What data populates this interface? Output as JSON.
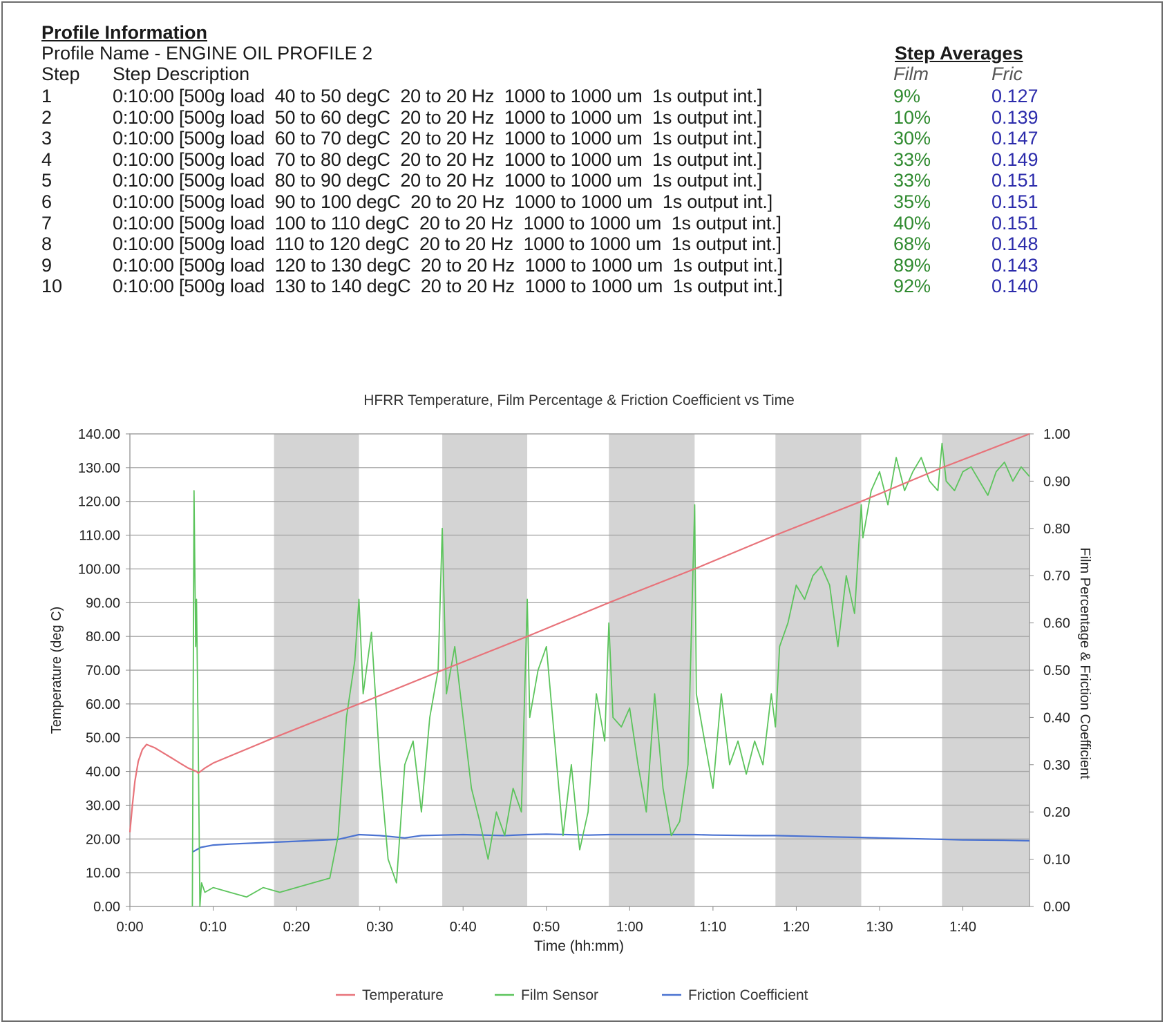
{
  "profile": {
    "heading": "Profile Information",
    "name_line": "Profile Name - ENGINE OIL PROFILE 2",
    "averages_heading": "Step Averages",
    "col_step": "Step",
    "col_desc": "Step Description",
    "col_film": "Film",
    "col_fric": "Fric",
    "rows": [
      {
        "step": "1",
        "desc": "0:10:00 [500g load  40 to 50 degC  20 to 20 Hz  1000 to 1000 um  1s output int.]",
        "film": "9%",
        "fric": "0.127"
      },
      {
        "step": "2",
        "desc": "0:10:00 [500g load  50 to 60 degC  20 to 20 Hz  1000 to 1000 um  1s output int.]",
        "film": "10%",
        "fric": "0.139"
      },
      {
        "step": "3",
        "desc": "0:10:00 [500g load  60 to 70 degC  20 to 20 Hz  1000 to 1000 um  1s output int.]",
        "film": "30%",
        "fric": "0.147"
      },
      {
        "step": "4",
        "desc": "0:10:00 [500g load  70 to 80 degC  20 to 20 Hz  1000 to 1000 um  1s output int.]",
        "film": "33%",
        "fric": "0.149"
      },
      {
        "step": "5",
        "desc": "0:10:00 [500g load  80 to 90 degC  20 to 20 Hz  1000 to 1000 um  1s output int.]",
        "film": "33%",
        "fric": "0.151"
      },
      {
        "step": "6",
        "desc": "0:10:00 [500g load  90 to 100 degC  20 to 20 Hz  1000 to 1000 um  1s output int.]",
        "film": "35%",
        "fric": "0.151"
      },
      {
        "step": "7",
        "desc": "0:10:00 [500g load  100 to 110 degC  20 to 20 Hz  1000 to 1000 um  1s output int.]",
        "film": "40%",
        "fric": "0.151"
      },
      {
        "step": "8",
        "desc": "0:10:00 [500g load  110 to 120 degC  20 to 20 Hz  1000 to 1000 um  1s output int.]",
        "film": "68%",
        "fric": "0.148"
      },
      {
        "step": "9",
        "desc": "0:10:00 [500g load  120 to 130 degC  20 to 20 Hz  1000 to 1000 um  1s output int.]",
        "film": "89%",
        "fric": "0.143"
      },
      {
        "step": "10",
        "desc": "0:10:00 [500g load  130 to 140 degC  20 to 20 Hz  1000 to 1000 um  1s output int.]",
        "film": "92%",
        "fric": "0.140"
      }
    ]
  },
  "chart_data": {
    "type": "line",
    "title": "HFRR Temperature, Film Percentage & Friction Coefficient vs Time",
    "xlabel": "Time (hh:mm)",
    "ylabel": "Temperature (deg C)",
    "y2label": "Film Percentage & Friction Coefficient",
    "x_unit": "minutes",
    "xlim": [
      0,
      108
    ],
    "ylim": [
      0,
      140
    ],
    "y2lim": [
      0,
      1
    ],
    "x_ticks": [
      0,
      10,
      20,
      30,
      40,
      50,
      60,
      70,
      80,
      90,
      100
    ],
    "x_tick_labels": [
      "0:00",
      "0:10",
      "0:20",
      "0:30",
      "0:40",
      "0:50",
      "1:00",
      "1:10",
      "1:20",
      "1:30",
      "1:40"
    ],
    "y_ticks": [
      0,
      10,
      20,
      30,
      40,
      50,
      60,
      70,
      80,
      90,
      100,
      110,
      120,
      130,
      140
    ],
    "y_tick_labels": [
      "0.00",
      "10.00",
      "20.00",
      "30.00",
      "40.00",
      "50.00",
      "60.00",
      "70.00",
      "80.00",
      "90.00",
      "100.00",
      "110.00",
      "120.00",
      "130.00",
      "140.00"
    ],
    "y2_ticks": [
      0,
      0.1,
      0.2,
      0.3,
      0.4,
      0.5,
      0.6,
      0.7,
      0.8,
      0.9,
      1.0
    ],
    "y2_tick_labels": [
      "0.00",
      "0.10",
      "0.20",
      "0.30",
      "0.40",
      "0.50",
      "0.60",
      "0.70",
      "0.80",
      "0.90",
      "1.00"
    ],
    "grid": true,
    "legend_position": "bottom",
    "shaded_bands": [
      [
        17.3,
        27.5
      ],
      [
        37.5,
        47.7
      ],
      [
        57.5,
        67.8
      ],
      [
        77.5,
        87.8
      ],
      [
        97.5,
        108
      ]
    ],
    "series": [
      {
        "name": "Temperature",
        "axis": "left",
        "color": "#e8737a",
        "x": [
          0,
          0.3,
          0.6,
          1.0,
          1.5,
          2.0,
          3.0,
          4.0,
          5.0,
          6.0,
          7.0,
          8.0,
          8.2,
          9.0,
          10.0,
          17.3,
          27.5,
          37.5,
          47.7,
          57.5,
          67.8,
          77.5,
          87.8,
          97.5,
          108
        ],
        "values": [
          22,
          30,
          37,
          43,
          46.5,
          48,
          47,
          45.5,
          44,
          42.5,
          41,
          40,
          39.5,
          41,
          42.5,
          50,
          60,
          70,
          80,
          90,
          100,
          110,
          120,
          130,
          140
        ]
      },
      {
        "name": "Film Sensor",
        "axis": "right",
        "color": "#5cc45c",
        "x": [
          7.5,
          7.7,
          7.9,
          8.0,
          8.2,
          8.4,
          8.6,
          8.8,
          9.0,
          10,
          12,
          14,
          16,
          18,
          20,
          22,
          24,
          25,
          26,
          27,
          27.5,
          28,
          29,
          30,
          31,
          32,
          33,
          34,
          35,
          36,
          37,
          37.5,
          38,
          39,
          40,
          41,
          42,
          43,
          44,
          45,
          46,
          47,
          47.7,
          48,
          49,
          50,
          51,
          52,
          53,
          54,
          55,
          56,
          57,
          57.5,
          58,
          59,
          60,
          61,
          62,
          63,
          64,
          65,
          66,
          67,
          67.8,
          68,
          69,
          70,
          71,
          72,
          73,
          74,
          75,
          76,
          77,
          77.5,
          78,
          79,
          80,
          81,
          82,
          83,
          84,
          85,
          86,
          87,
          87.8,
          88,
          89,
          90,
          91,
          92,
          93,
          94,
          95,
          96,
          97,
          97.5,
          98,
          99,
          100,
          101,
          102,
          103,
          104,
          105,
          106,
          107,
          108
        ],
        "values": [
          0.0,
          0.88,
          0.55,
          0.65,
          0.35,
          0.0,
          0.05,
          0.04,
          0.03,
          0.04,
          0.03,
          0.02,
          0.04,
          0.03,
          0.04,
          0.05,
          0.06,
          0.15,
          0.4,
          0.52,
          0.65,
          0.45,
          0.58,
          0.3,
          0.1,
          0.05,
          0.3,
          0.35,
          0.2,
          0.4,
          0.5,
          0.8,
          0.45,
          0.55,
          0.4,
          0.25,
          0.18,
          0.1,
          0.2,
          0.15,
          0.25,
          0.2,
          0.65,
          0.4,
          0.5,
          0.55,
          0.35,
          0.15,
          0.3,
          0.12,
          0.2,
          0.45,
          0.35,
          0.6,
          0.4,
          0.38,
          0.42,
          0.3,
          0.2,
          0.45,
          0.25,
          0.15,
          0.18,
          0.3,
          0.85,
          0.45,
          0.35,
          0.25,
          0.45,
          0.3,
          0.35,
          0.28,
          0.35,
          0.3,
          0.45,
          0.38,
          0.55,
          0.6,
          0.68,
          0.65,
          0.7,
          0.72,
          0.68,
          0.55,
          0.7,
          0.62,
          0.85,
          0.78,
          0.88,
          0.92,
          0.85,
          0.95,
          0.88,
          0.92,
          0.95,
          0.9,
          0.88,
          0.98,
          0.9,
          0.88,
          0.92,
          0.93,
          0.9,
          0.87,
          0.92,
          0.94,
          0.9,
          0.93,
          0.91
        ]
      },
      {
        "name": "Friction Coefficient",
        "axis": "right",
        "color": "#4a72d1",
        "x": [
          7.5,
          8.0,
          8.5,
          10,
          12,
          17.3,
          20,
          25,
          27.5,
          30,
          33,
          35,
          37.5,
          40,
          45,
          47.7,
          50,
          55,
          57.5,
          60,
          65,
          67.8,
          70,
          75,
          77.5,
          80,
          85,
          87.8,
          90,
          95,
          97.5,
          100,
          105,
          108
        ],
        "values": [
          0.115,
          0.12,
          0.125,
          0.13,
          0.132,
          0.136,
          0.138,
          0.142,
          0.152,
          0.15,
          0.145,
          0.15,
          0.151,
          0.152,
          0.15,
          0.152,
          0.153,
          0.151,
          0.152,
          0.152,
          0.152,
          0.152,
          0.151,
          0.15,
          0.15,
          0.149,
          0.147,
          0.146,
          0.145,
          0.143,
          0.142,
          0.141,
          0.14,
          0.139
        ]
      }
    ]
  }
}
